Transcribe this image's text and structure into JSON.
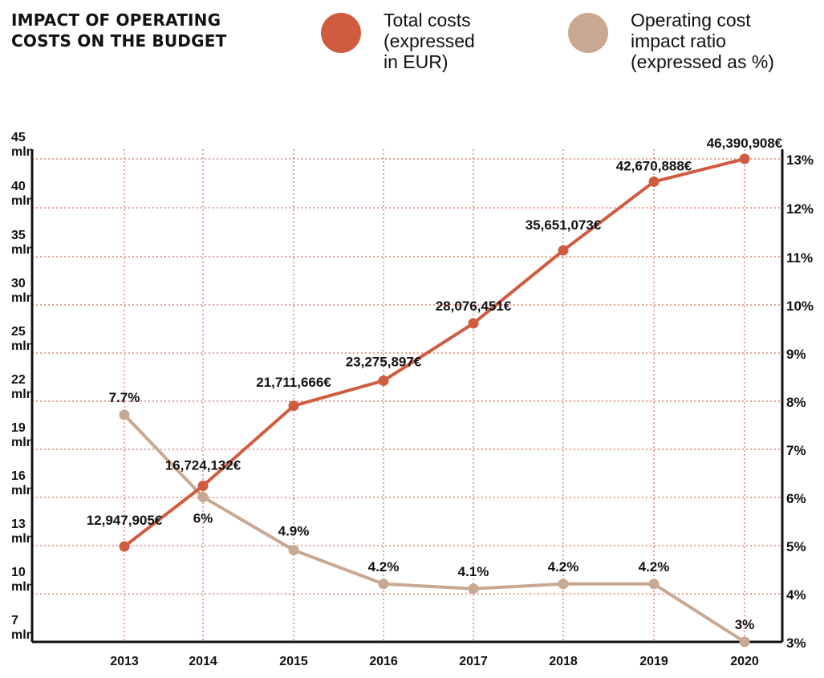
{
  "colors": {
    "total_costs": "#d05c3f",
    "ratio": "#c9a891",
    "grid": "#d96a57",
    "axis": "#111111"
  },
  "chart_data": {
    "type": "line",
    "title": "IMPACT OF OPERATING COSTS ON THE BUDGET",
    "legend": [
      {
        "key": "total_costs",
        "label": "Total costs\n(expressed\nin EUR)"
      },
      {
        "key": "ratio",
        "label": "Operating cost\nimpact ratio\n(expressed as %)"
      }
    ],
    "x": [
      "2013",
      "2014",
      "2015",
      "2016",
      "2017",
      "2018",
      "2019",
      "2020"
    ],
    "left_axis_ticks": [
      {
        "v1": "7",
        "v2": "mln"
      },
      {
        "v1": "10",
        "v2": "mln"
      },
      {
        "v1": "13",
        "v2": "mln"
      },
      {
        "v1": "16",
        "v2": "mln"
      },
      {
        "v1": "19",
        "v2": "mln"
      },
      {
        "v1": "22",
        "v2": "mln"
      },
      {
        "v1": "25",
        "v2": "mln"
      },
      {
        "v1": "30",
        "v2": "mln"
      },
      {
        "v1": "35",
        "v2": "mln"
      },
      {
        "v1": "40",
        "v2": "mln"
      },
      {
        "v1": "45",
        "v2": "mln"
      }
    ],
    "right_axis_ticks": [
      "3%",
      "4%",
      "5%",
      "6%",
      "7%",
      "8%",
      "9%",
      "10%",
      "11%",
      "12%",
      "13%"
    ],
    "series": [
      {
        "key": "total_costs",
        "name": "Total costs",
        "axis": "left",
        "values": [
          12947905,
          16724132,
          21711666,
          23275897,
          28076451,
          35651073,
          42670888,
          46390908
        ],
        "labels": [
          "12,947,905€",
          "16,724,132€",
          "21,711,666€",
          "23,275,897€",
          "28,076,451€",
          "35,651,073€",
          "42,670,888€",
          "46,390,908€"
        ]
      },
      {
        "key": "ratio",
        "name": "Operating cost impact ratio",
        "axis": "right",
        "values": [
          7.7,
          6,
          4.9,
          4.2,
          4.1,
          4.2,
          4.2,
          3
        ],
        "labels": [
          "7.7%",
          "6%",
          "4.9%",
          "4.2%",
          "4.1%",
          "4.2%",
          "4.2%",
          "3%"
        ]
      }
    ],
    "grid": true
  }
}
